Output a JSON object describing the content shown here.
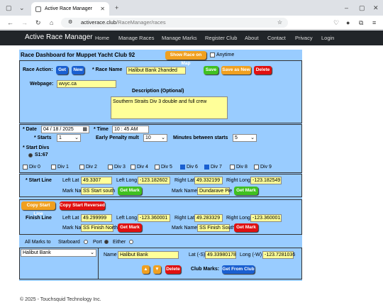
{
  "browser": {
    "tab_title": "Active Race Manager",
    "url_host": "activerace.club",
    "url_path": "/RaceManager/races"
  },
  "nav": {
    "brand": "Active Race Manager",
    "items": [
      "Home",
      "Manage Races",
      "Manage Marks",
      "Register Club",
      "About",
      "Contact",
      "Privacy",
      "Login"
    ]
  },
  "dashboard": {
    "title": "Race Dashboard for Muppet Yacht Club 92",
    "show_map": "Show Race on Map",
    "anytime": "Anytime",
    "race_action_label": "Race Action:",
    "get": "Get",
    "new": "New",
    "race_name_label": "* Race Name",
    "race_name": "Halibut Bank 2handed",
    "save": "Save",
    "save_as_new": "Save as New",
    "delete": "Delete",
    "webpage_label": "Webpage:",
    "webpage": "wvyc.ca",
    "description_label": "Description (Optional)",
    "description": "Southern Straits Div 3 double and full crew"
  },
  "schedule": {
    "date_label": "* Date",
    "date": "04 / 18 / 2025",
    "time_label": "* Time",
    "time": "10 : 45  AM",
    "starts_label": "* Starts",
    "starts": "1",
    "penalty_label": "Early Penalty mult",
    "penalty": "10",
    "minutes_label": "Minutes between starts",
    "minutes": "5",
    "start_divs_label": "* Start Divs",
    "start_option": "S1:67",
    "divs": [
      {
        "label": "Div 0",
        "checked": false
      },
      {
        "label": "Div 1",
        "checked": false
      },
      {
        "label": "Div 2",
        "checked": false
      },
      {
        "label": "Div 3",
        "checked": false
      },
      {
        "label": "Div 4",
        "checked": false
      },
      {
        "label": "Div 5",
        "checked": false
      },
      {
        "label": "Div 6",
        "checked": true
      },
      {
        "label": "Div 7",
        "checked": true
      },
      {
        "label": "Div 8",
        "checked": false
      },
      {
        "label": "Div 9",
        "checked": false
      }
    ]
  },
  "start_line": {
    "label": "* Start Line",
    "left_lat_label": "Left Lat",
    "left_lat": "49.3307",
    "left_long_label": "Left Long",
    "left_long": "-123.182602",
    "right_lat_label": "Right Lat",
    "right_lat": "49.332199",
    "right_long_label": "Right Long",
    "right_long": "-123.182549",
    "mark_name_label": "Mark Name",
    "left_mark": "SS Start south",
    "right_mark": "Dundarave Pie",
    "get_mark": "Get Mark"
  },
  "finish_line": {
    "copy_start": "Copy Start Line",
    "copy_reversed": "Copy Start Reversed",
    "label": "Finish Line",
    "left_lat_label": "Left Lat",
    "left_lat": "49.299999",
    "left_long_label": "Left Long",
    "left_long": "-123.360001",
    "right_lat_label": "Right Lat",
    "right_lat": "49.283329",
    "right_long_label": "Right Long",
    "right_long": "-123.360001",
    "mark_name_label": "Mark Name",
    "left_mark": "SS Finish North",
    "right_mark": "SS Finish South",
    "get_mark": "Get Mark"
  },
  "marks": {
    "all_marks_label": "All Marks to",
    "starboard": "Starboard",
    "port": "Port",
    "either": "Either",
    "selected": "Halibut Bank",
    "name_label": "Name",
    "name": "Halibut Bank",
    "lat_label": "Lat (-S)",
    "lat": "49.33980178",
    "long_label": "Long (-W)",
    "long": "-123.7281036",
    "up": "▲",
    "down": "▼",
    "delete": "Delete",
    "club_marks_label": "Club Marks:",
    "get_from_club": "Get From Club"
  },
  "footer": "© 2025 - Touchsquid Technology Inc."
}
